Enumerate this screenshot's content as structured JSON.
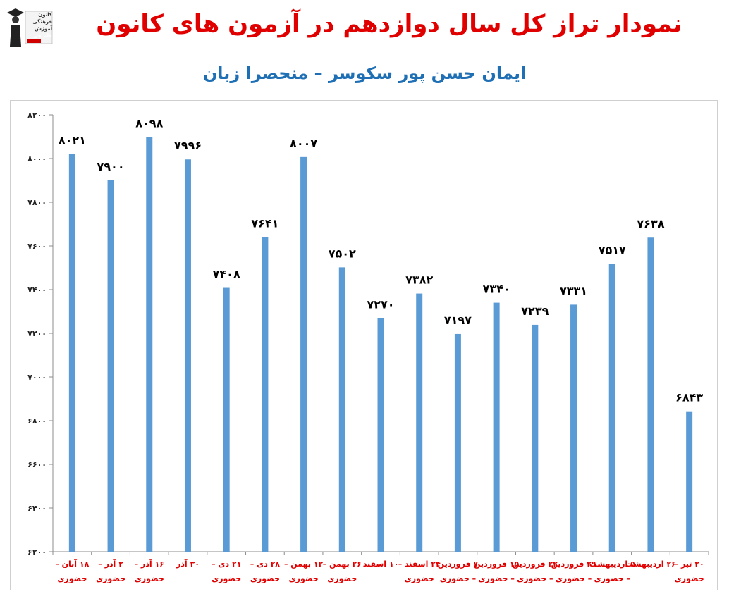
{
  "header": {
    "title": "نمودار تراز کل سال دوازدهم در آزمون های کانون",
    "subtitle": "ایمان حسن پور سکوسر – منحصرا زبان"
  },
  "logo": {
    "lines": [
      "کانون",
      "فرهنگی",
      "آموزش",
      "قلم چی"
    ]
  },
  "chart_data": {
    "type": "bar",
    "title": "نمودار تراز کل سال دوازدهم در آزمون های کانون",
    "subtitle": "ایمان حسن پور سکوسر – منحصرا زبان",
    "ylim": [
      6200,
      8200
    ],
    "yticks": [
      6200,
      6400,
      6600,
      6800,
      7000,
      7200,
      7400,
      7600,
      7800,
      8000,
      8200
    ],
    "ytick_labels": [
      "۶۲۰۰",
      "۶۴۰۰",
      "۶۶۰۰",
      "۶۸۰۰",
      "۷۰۰۰",
      "۷۲۰۰",
      "۷۴۰۰",
      "۷۶۰۰",
      "۷۸۰۰",
      "۸۰۰۰",
      "۸۲۰۰"
    ],
    "grid": false,
    "bar_color": "#5b9bd5",
    "label_color": "#e00000",
    "categories": [
      [
        "۱۸ آبان –",
        "حضوری"
      ],
      [
        "۲ آذر –",
        "حضوری"
      ],
      [
        "۱۶ آذر –",
        "حضوری"
      ],
      [
        "۳۰ آذر",
        ""
      ],
      [
        "۲۱ دی –",
        "حضوری"
      ],
      [
        "۲۸ دی –",
        "حضوری"
      ],
      [
        "۱۲ بهمن –",
        "حضوری"
      ],
      [
        "۲۶ بهمن –",
        "حضوری"
      ],
      [
        "۱۰ اسفند",
        ""
      ],
      [
        "۲۴ اسفند –",
        "حضوری"
      ],
      [
        "۷ فروردین",
        "– حضوری"
      ],
      [
        "۱۵ فروردین",
        "– حضوری"
      ],
      [
        "۲۲ فروردین",
        "– حضوری"
      ],
      [
        "۲۹ فروردین",
        "– حضوری"
      ],
      [
        "۵ اردیبهشت",
        "– حضوری"
      ],
      [
        "۲۶ اردیبهشت",
        ""
      ],
      [
        "۲۰ تیر –",
        "حضوری"
      ]
    ],
    "values": [
      8021,
      7900,
      8098,
      7996,
      7408,
      7641,
      8007,
      7502,
      7270,
      7382,
      7197,
      7340,
      7239,
      7331,
      7517,
      7638,
      6843
    ],
    "value_labels": [
      "۸۰۲۱",
      "۷۹۰۰",
      "۸۰۹۸",
      "۷۹۹۶",
      "۷۴۰۸",
      "۷۶۴۱",
      "۸۰۰۷",
      "۷۵۰۲",
      "۷۲۷۰",
      "۷۳۸۲",
      "۷۱۹۷",
      "۷۳۴۰",
      "۷۲۳۹",
      "۷۳۳۱",
      "۷۵۱۷",
      "۷۶۳۸",
      "۶۸۴۳"
    ]
  }
}
